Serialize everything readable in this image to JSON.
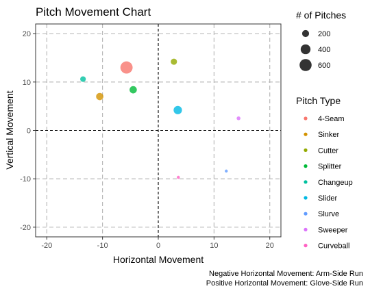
{
  "chart_data": {
    "type": "scatter",
    "title": "Pitch Movement Chart",
    "xlabel": "Horizontal Movement",
    "ylabel": "Vertical Movement",
    "xlim": [
      -22,
      22
    ],
    "ylim": [
      -22,
      22
    ],
    "x_ticks": [
      -20,
      -10,
      0,
      10,
      20
    ],
    "y_ticks": [
      -20,
      -10,
      0,
      10,
      20
    ],
    "x_tick_labels": [
      "-20",
      "-10",
      "0",
      "10",
      "20"
    ],
    "y_tick_labels": [
      "-20",
      "-10",
      "0",
      "10",
      "20"
    ],
    "grid": "dashed",
    "reference_lines": {
      "x": 0,
      "y": 0
    },
    "size_legend": {
      "title": "# of Pitches",
      "values": [
        200,
        400,
        600
      ],
      "labels": [
        "200",
        "400",
        "600"
      ]
    },
    "color_legend": {
      "title": "Pitch Type",
      "placement": "right"
    },
    "points": [
      {
        "pitch_type": "4-Seam",
        "x": -5.7,
        "y": 13.0,
        "pitches": 620,
        "color": "#F8766D"
      },
      {
        "pitch_type": "Sinker",
        "x": -10.5,
        "y": 7.0,
        "pitches": 220,
        "color": "#D39200"
      },
      {
        "pitch_type": "Cutter",
        "x": 2.8,
        "y": 14.2,
        "pitches": 160,
        "color": "#93AA00"
      },
      {
        "pitch_type": "Splitter",
        "x": -4.5,
        "y": 8.4,
        "pitches": 220,
        "color": "#00BA38"
      },
      {
        "pitch_type": "Changeup",
        "x": -13.5,
        "y": 10.6,
        "pitches": 130,
        "color": "#00C19F"
      },
      {
        "pitch_type": "Slider",
        "x": 3.5,
        "y": 4.2,
        "pitches": 290,
        "color": "#00B9E3"
      },
      {
        "pitch_type": "Slurve",
        "x": 12.2,
        "y": -8.4,
        "pitches": 20,
        "color": "#619CFF"
      },
      {
        "pitch_type": "Sweeper",
        "x": 14.4,
        "y": 2.5,
        "pitches": 60,
        "color": "#DB72FB"
      },
      {
        "pitch_type": "Curveball",
        "x": 3.6,
        "y": -9.7,
        "pitches": 40,
        "color": "#FF61C3"
      }
    ],
    "caption_lines": [
      "Negative Horizontal Movement: Arm-Side Run",
      "Positive Horizontal Movement: Glove-Side Run"
    ]
  },
  "colors": {
    "panel_border": "#333333",
    "grid": "#b3b3b3",
    "reference_line": "#000000",
    "size_legend_point": "#333333"
  }
}
